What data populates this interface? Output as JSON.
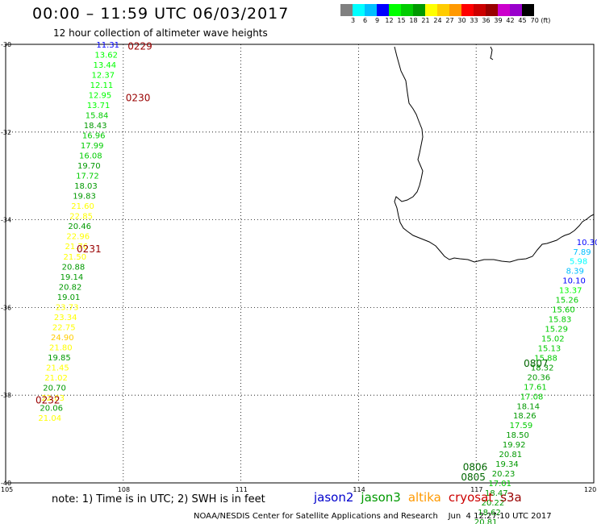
{
  "title": "00:00 – 11:59 UTC 06/03/2017",
  "subtitle": "12 hour collection of altimeter wave heights",
  "colorbar": {
    "colors": [
      "#808080",
      "#00ffff",
      "#00bfff",
      "#0000ff",
      "#00ff00",
      "#00cc00",
      "#009900",
      "#ffff00",
      "#ffcc00",
      "#ff9900",
      "#ff0000",
      "#cc0000",
      "#990000",
      "#cc00cc",
      "#9900cc",
      "#000000"
    ],
    "labels": [
      "",
      "3",
      "6",
      "9",
      "12",
      "15",
      "18",
      "21",
      "24",
      "27",
      "30",
      "33",
      "36",
      "39",
      "42",
      "45",
      "70 (ft)"
    ]
  },
  "axes": {
    "lat_labels": [
      "-30",
      "-32",
      "-34",
      "-36",
      "-38",
      "-40"
    ],
    "lon_labels": [
      "105",
      "108",
      "111",
      "114",
      "117",
      "120"
    ]
  },
  "track_west": {
    "time_labels": [
      {
        "text": "0229",
        "lat": -30.03,
        "lon": 108.4
      },
      {
        "text": "0230",
        "lat": -31.2,
        "lon": 108.35
      },
      {
        "text": "0231",
        "lat": -34.65,
        "lon": 107.1
      },
      {
        "text": "0232",
        "lat": -38.1,
        "lon": 106.05
      }
    ],
    "points": [
      {
        "v": "11.31",
        "lat": -30.0,
        "lon": 107.6
      },
      {
        "v": "13.62",
        "lat": -30.23,
        "lon": 107.56
      },
      {
        "v": "13.44",
        "lat": -30.46,
        "lon": 107.52
      },
      {
        "v": "12.37",
        "lat": -30.69,
        "lon": 107.48
      },
      {
        "v": "12.11",
        "lat": -30.92,
        "lon": 107.44
      },
      {
        "v": "12.95",
        "lat": -31.15,
        "lon": 107.4
      },
      {
        "v": "13.71",
        "lat": -31.38,
        "lon": 107.36
      },
      {
        "v": "15.84",
        "lat": -31.61,
        "lon": 107.32
      },
      {
        "v": "18.43",
        "lat": -31.84,
        "lon": 107.28
      },
      {
        "v": "16.96",
        "lat": -32.07,
        "lon": 107.24
      },
      {
        "v": "17.99",
        "lat": -32.3,
        "lon": 107.2
      },
      {
        "v": "16.08",
        "lat": -32.53,
        "lon": 107.16
      },
      {
        "v": "19.70",
        "lat": -32.76,
        "lon": 107.12
      },
      {
        "v": "17.72",
        "lat": -32.99,
        "lon": 107.08
      },
      {
        "v": "18.03",
        "lat": -33.22,
        "lon": 107.04
      },
      {
        "v": "19.83",
        "lat": -33.45,
        "lon": 107.0
      },
      {
        "v": "21.60",
        "lat": -33.68,
        "lon": 106.96
      },
      {
        "v": "22.85",
        "lat": -33.91,
        "lon": 106.92
      },
      {
        "v": "20.46",
        "lat": -34.14,
        "lon": 106.88
      },
      {
        "v": "22.96",
        "lat": -34.37,
        "lon": 106.84
      },
      {
        "v": "21.76",
        "lat": -34.6,
        "lon": 106.8
      },
      {
        "v": "21.50",
        "lat": -34.83,
        "lon": 106.76
      },
      {
        "v": "20.88",
        "lat": -35.06,
        "lon": 106.72
      },
      {
        "v": "19.14",
        "lat": -35.29,
        "lon": 106.68
      },
      {
        "v": "20.82",
        "lat": -35.52,
        "lon": 106.64
      },
      {
        "v": "19.01",
        "lat": -35.75,
        "lon": 106.6
      },
      {
        "v": "23.73",
        "lat": -35.98,
        "lon": 106.56
      },
      {
        "v": "23.34",
        "lat": -36.21,
        "lon": 106.52
      },
      {
        "v": "22.75",
        "lat": -36.44,
        "lon": 106.48
      },
      {
        "v": "24.90",
        "lat": -36.67,
        "lon": 106.44
      },
      {
        "v": "21.80",
        "lat": -36.9,
        "lon": 106.4
      },
      {
        "v": "19.85",
        "lat": -37.13,
        "lon": 106.36
      },
      {
        "v": "21.45",
        "lat": -37.36,
        "lon": 106.32
      },
      {
        "v": "21.02",
        "lat": -37.59,
        "lon": 106.28
      },
      {
        "v": "20.70",
        "lat": -37.82,
        "lon": 106.24
      },
      {
        "v": "22.03",
        "lat": -38.05,
        "lon": 106.2
      },
      {
        "v": "20.06",
        "lat": -38.28,
        "lon": 106.16
      },
      {
        "v": "21.04",
        "lat": -38.51,
        "lon": 106.12
      }
    ]
  },
  "track_east": {
    "time_labels": [
      {
        "text": "0807",
        "lat": -37.26,
        "lon": 118.5
      },
      {
        "text": "0806",
        "lat": -39.62,
        "lon": 116.95
      },
      {
        "text": "0805",
        "lat": -39.85,
        "lon": 116.9
      }
    ],
    "points": [
      {
        "v": "10.30",
        "lat": -34.5,
        "lon": 119.85
      },
      {
        "v": "7.89",
        "lat": -34.72,
        "lon": 119.76
      },
      {
        "v": "5.98",
        "lat": -34.94,
        "lon": 119.67
      },
      {
        "v": "8.39",
        "lat": -35.16,
        "lon": 119.58
      },
      {
        "v": "10.10",
        "lat": -35.38,
        "lon": 119.49
      },
      {
        "v": "13.37",
        "lat": -35.6,
        "lon": 119.4
      },
      {
        "v": "15.26",
        "lat": -35.82,
        "lon": 119.31
      },
      {
        "v": "15.60",
        "lat": -36.04,
        "lon": 119.22
      },
      {
        "v": "15.83",
        "lat": -36.26,
        "lon": 119.13
      },
      {
        "v": "15.29",
        "lat": -36.48,
        "lon": 119.04
      },
      {
        "v": "15.02",
        "lat": -36.7,
        "lon": 118.95
      },
      {
        "v": "15.13",
        "lat": -36.92,
        "lon": 118.86
      },
      {
        "v": "15.88",
        "lat": -37.14,
        "lon": 118.77
      },
      {
        "v": "18.32",
        "lat": -37.36,
        "lon": 118.68
      },
      {
        "v": "20.36",
        "lat": -37.58,
        "lon": 118.59
      },
      {
        "v": "17.61",
        "lat": -37.8,
        "lon": 118.5
      },
      {
        "v": "17.08",
        "lat": -38.02,
        "lon": 118.41
      },
      {
        "v": "18.14",
        "lat": -38.24,
        "lon": 118.32
      },
      {
        "v": "18.26",
        "lat": -38.46,
        "lon": 118.23
      },
      {
        "v": "17.59",
        "lat": -38.68,
        "lon": 118.14
      },
      {
        "v": "18.50",
        "lat": -38.9,
        "lon": 118.05
      },
      {
        "v": "19.92",
        "lat": -39.12,
        "lon": 117.96
      },
      {
        "v": "20.81",
        "lat": -39.34,
        "lon": 117.87
      },
      {
        "v": "19.34",
        "lat": -39.56,
        "lon": 117.78
      },
      {
        "v": "20.23",
        "lat": -39.78,
        "lon": 117.69
      },
      {
        "v": "17.01",
        "lat": -40.0,
        "lon": 117.6
      },
      {
        "v": "18.47",
        "lat": -40.22,
        "lon": 117.51
      },
      {
        "v": "20.22",
        "lat": -40.44,
        "lon": 117.42
      },
      {
        "v": "18.62",
        "lat": -40.66,
        "lon": 117.33
      },
      {
        "v": "20.81",
        "lat": -40.88,
        "lon": 117.24
      }
    ]
  },
  "note": "note:  1) Time is in UTC; 2) SWH is in feet",
  "satellites": [
    {
      "name": "jason2",
      "color": "#0000cc"
    },
    {
      "name": "jason3",
      "color": "#009900"
    },
    {
      "name": "altika",
      "color": "#ff9900"
    },
    {
      "name": "cryosat",
      "color": "#cc0000"
    },
    {
      "name": "s3a",
      "color": "#990000"
    }
  ],
  "footer": "NOAA/NESDIS Center for Satellite Applications and Research    Jun  4 12:27:10 UTC 2017"
}
